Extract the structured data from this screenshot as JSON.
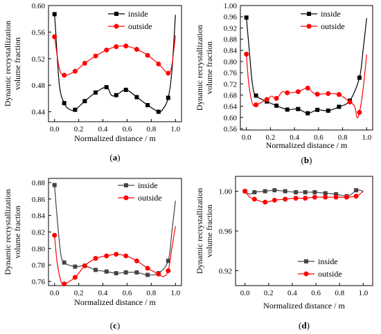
{
  "colors": {
    "inside": "#000000",
    "inside_d": "#444444",
    "outside": "#ff0000"
  },
  "chart_data": [
    {
      "panel": "(a)",
      "type": "line",
      "xlabel": "Normalized distance / m",
      "ylabel": [
        "Dynamic recrystallization",
        "volume fraction"
      ],
      "xlim": [
        -0.05,
        1.05
      ],
      "ylim": [
        0.425,
        0.6
      ],
      "xticks": [
        "0.0",
        "0.2",
        "0.4",
        "0.6",
        "0.8",
        "1.0"
      ],
      "yticks": [
        "0.44",
        "0.48",
        "0.52",
        "0.56",
        "0.60"
      ],
      "legend_position": "top-right",
      "series": [
        {
          "name": "inside",
          "marker": "square",
          "x": [
            0.0,
            0.08,
            0.17,
            0.25,
            0.34,
            0.43,
            0.51,
            0.59,
            0.68,
            0.77,
            0.86,
            0.94
          ],
          "y": [
            0.587,
            0.453,
            0.443,
            0.456,
            0.469,
            0.477,
            0.465,
            0.473,
            0.462,
            0.45,
            0.44,
            0.461
          ],
          "curve_x": [
            0.0,
            0.01,
            0.04,
            0.08,
            0.12,
            0.17,
            0.25,
            0.34,
            0.43,
            0.47,
            0.51,
            0.59,
            0.68,
            0.77,
            0.86,
            0.9,
            0.94,
            0.97,
            1.0
          ],
          "curve_y": [
            0.587,
            0.56,
            0.48,
            0.453,
            0.444,
            0.443,
            0.456,
            0.469,
            0.477,
            0.465,
            0.465,
            0.473,
            0.462,
            0.45,
            0.44,
            0.445,
            0.461,
            0.5,
            0.586
          ]
        },
        {
          "name": "outside",
          "marker": "circle",
          "x": [
            0.0,
            0.08,
            0.17,
            0.25,
            0.34,
            0.43,
            0.51,
            0.59,
            0.68,
            0.77,
            0.86,
            0.94
          ],
          "y": [
            0.553,
            0.495,
            0.501,
            0.513,
            0.524,
            0.533,
            0.538,
            0.539,
            0.534,
            0.525,
            0.512,
            0.498
          ],
          "curve_x": [
            0.0,
            0.01,
            0.04,
            0.08,
            0.17,
            0.25,
            0.34,
            0.43,
            0.51,
            0.59,
            0.68,
            0.77,
            0.86,
            0.94,
            0.97,
            1.0
          ],
          "curve_y": [
            0.553,
            0.54,
            0.505,
            0.495,
            0.501,
            0.513,
            0.524,
            0.533,
            0.538,
            0.539,
            0.534,
            0.525,
            0.512,
            0.498,
            0.51,
            0.555
          ]
        }
      ]
    },
    {
      "panel": "(b)",
      "type": "line",
      "xlabel": "Normalized distance / m",
      "ylabel": [
        "Dynamic recrystallization",
        "volume fraction"
      ],
      "xlim": [
        -0.05,
        1.05
      ],
      "ylim": [
        0.555,
        1.0
      ],
      "xticks": [
        "0.0",
        "0.2",
        "0.4",
        "0.6",
        "0.8",
        "1.0"
      ],
      "yticks": [
        "0.56",
        "0.60",
        "0.64",
        "0.68",
        "0.72",
        "0.76",
        "0.80",
        "0.84",
        "0.88",
        "0.92",
        "0.96",
        "1.00"
      ],
      "legend_position": "top-right",
      "series": [
        {
          "name": "inside",
          "marker": "square",
          "x": [
            0.0,
            0.08,
            0.17,
            0.25,
            0.34,
            0.43,
            0.51,
            0.59,
            0.68,
            0.77,
            0.86,
            0.94
          ],
          "y": [
            0.957,
            0.678,
            0.657,
            0.642,
            0.628,
            0.63,
            0.615,
            0.627,
            0.624,
            0.638,
            0.66,
            0.742
          ],
          "curve_x": [
            0.0,
            0.02,
            0.05,
            0.08,
            0.17,
            0.25,
            0.34,
            0.43,
            0.51,
            0.59,
            0.68,
            0.77,
            0.86,
            0.94,
            0.97,
            1.0
          ],
          "curve_y": [
            0.957,
            0.86,
            0.72,
            0.678,
            0.657,
            0.642,
            0.628,
            0.63,
            0.615,
            0.627,
            0.624,
            0.638,
            0.66,
            0.742,
            0.84,
            0.955
          ]
        },
        {
          "name": "outside",
          "marker": "circle",
          "x": [
            0.0,
            0.08,
            0.17,
            0.25,
            0.34,
            0.43,
            0.51,
            0.59,
            0.68,
            0.77,
            0.86,
            0.94
          ],
          "y": [
            0.826,
            0.645,
            0.664,
            0.668,
            0.688,
            0.692,
            0.705,
            0.683,
            0.685,
            0.682,
            0.655,
            0.618
          ],
          "curve_x": [
            0.0,
            0.02,
            0.05,
            0.08,
            0.17,
            0.21,
            0.25,
            0.3,
            0.34,
            0.43,
            0.47,
            0.51,
            0.55,
            0.59,
            0.68,
            0.77,
            0.86,
            0.9,
            0.92,
            0.94,
            0.97,
            1.0
          ],
          "curve_y": [
            0.826,
            0.72,
            0.65,
            0.645,
            0.664,
            0.676,
            0.668,
            0.692,
            0.688,
            0.692,
            0.7,
            0.705,
            0.69,
            0.683,
            0.685,
            0.682,
            0.655,
            0.64,
            0.6,
            0.618,
            0.7,
            0.825
          ]
        }
      ]
    },
    {
      "panel": "(c)",
      "type": "line",
      "xlabel": "Normalized distance / m",
      "ylabel": [
        "Dynamic recrystallization",
        "volume fraction"
      ],
      "xlim": [
        -0.05,
        1.05
      ],
      "ylim": [
        0.755,
        0.885
      ],
      "xticks": [
        "0.0",
        "0.2",
        "0.4",
        "0.6",
        "0.8",
        "1.0"
      ],
      "yticks": [
        "0.76",
        "0.78",
        "0.80",
        "0.82",
        "0.84",
        "0.86",
        "0.88"
      ],
      "legend_position": "top-right",
      "series": [
        {
          "name": "inside",
          "marker": "square",
          "x": [
            0.0,
            0.08,
            0.17,
            0.25,
            0.34,
            0.43,
            0.51,
            0.59,
            0.68,
            0.77,
            0.86,
            0.94
          ],
          "y": [
            0.877,
            0.783,
            0.778,
            0.779,
            0.774,
            0.772,
            0.77,
            0.771,
            0.771,
            0.768,
            0.77,
            0.785
          ],
          "curve_x": [
            0.0,
            0.02,
            0.05,
            0.08,
            0.17,
            0.25,
            0.34,
            0.43,
            0.51,
            0.59,
            0.68,
            0.77,
            0.86,
            0.94,
            0.97,
            1.0
          ],
          "curve_y": [
            0.877,
            0.84,
            0.795,
            0.783,
            0.778,
            0.779,
            0.774,
            0.772,
            0.77,
            0.771,
            0.771,
            0.768,
            0.77,
            0.785,
            0.82,
            0.858
          ]
        },
        {
          "name": "outside",
          "marker": "circle",
          "x": [
            0.0,
            0.08,
            0.17,
            0.25,
            0.34,
            0.43,
            0.51,
            0.59,
            0.68,
            0.77,
            0.86,
            0.94
          ],
          "y": [
            0.816,
            0.757,
            0.765,
            0.779,
            0.788,
            0.791,
            0.793,
            0.791,
            0.785,
            0.776,
            0.769,
            0.773
          ],
          "curve_x": [
            0.0,
            0.02,
            0.05,
            0.08,
            0.17,
            0.25,
            0.34,
            0.43,
            0.51,
            0.59,
            0.68,
            0.77,
            0.86,
            0.9,
            0.94,
            0.97,
            1.0
          ],
          "curve_y": [
            0.816,
            0.785,
            0.762,
            0.757,
            0.765,
            0.779,
            0.788,
            0.791,
            0.793,
            0.791,
            0.785,
            0.776,
            0.769,
            0.766,
            0.773,
            0.8,
            0.827
          ]
        }
      ]
    },
    {
      "panel": "(d)",
      "type": "line",
      "xlabel": "Normalized distance / m",
      "ylabel": [
        "Dynamic recrystallization",
        "volume fraction"
      ],
      "xlim": [
        -0.08,
        1.08
      ],
      "ylim": [
        0.905,
        1.015
      ],
      "xticks": [
        "0.0",
        "0.2",
        "0.4",
        "0.6",
        "0.8",
        "1.0"
      ],
      "yticks": [
        "0.92",
        "0.96",
        "1.00"
      ],
      "legend_position": "bottom-right",
      "series": [
        {
          "name": "inside",
          "marker": "square",
          "x": [
            0.0,
            0.08,
            0.17,
            0.25,
            0.34,
            0.43,
            0.51,
            0.59,
            0.68,
            0.77,
            0.86,
            0.94
          ],
          "y": [
            1.0,
            0.999,
            1.0,
            1.001,
            1.0,
            0.999,
            0.999,
            0.999,
            0.998,
            0.997,
            0.995,
            1.001
          ],
          "curve_x": [
            0.0,
            0.04,
            0.08,
            0.17,
            0.25,
            0.34,
            0.43,
            0.51,
            0.59,
            0.68,
            0.77,
            0.86,
            0.9,
            0.94,
            0.97,
            1.0
          ],
          "curve_y": [
            1.0,
            0.997,
            0.999,
            1.0,
            1.001,
            1.0,
            0.999,
            0.999,
            0.999,
            0.998,
            0.997,
            0.995,
            0.997,
            1.001,
            1.001,
            1.0
          ]
        },
        {
          "name": "outside",
          "marker": "circle",
          "x": [
            0.0,
            0.08,
            0.17,
            0.25,
            0.34,
            0.43,
            0.51,
            0.59,
            0.68,
            0.77,
            0.86,
            0.94
          ],
          "y": [
            1.0,
            0.992,
            0.989,
            0.991,
            0.992,
            0.993,
            0.993,
            0.994,
            0.994,
            0.994,
            0.994,
            0.995
          ],
          "curve_x": [
            0.0,
            0.04,
            0.08,
            0.17,
            0.25,
            0.34,
            0.43,
            0.51,
            0.59,
            0.68,
            0.77,
            0.86,
            0.94,
            0.97,
            1.0
          ],
          "curve_y": [
            1.0,
            0.994,
            0.992,
            0.989,
            0.991,
            0.992,
            0.993,
            0.993,
            0.994,
            0.994,
            0.994,
            0.994,
            0.995,
            0.997,
            1.0
          ]
        }
      ]
    }
  ]
}
